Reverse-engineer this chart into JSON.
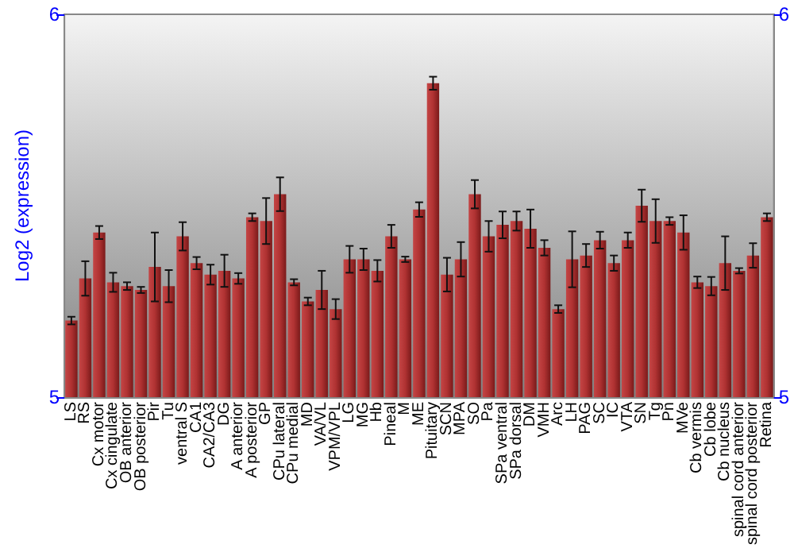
{
  "chart_data": {
    "type": "bar",
    "ylabel": "Log2 (expression)",
    "categories": [
      "LS",
      "RS",
      "Cx motor",
      "Cx cingulate",
      "OB anterior",
      "OB posterior",
      "Pir",
      "Tu",
      "ventral S",
      "CA1",
      "CA2/CA3",
      "DG",
      "A anterior",
      "A posterior",
      "GP",
      "CPu lateral",
      "CPu medial",
      "MD",
      "VA/VL",
      "VPM/VPL",
      "LG",
      "MG",
      "Hb",
      "Pineal",
      "M",
      "ME",
      "Pituitary",
      "SCN",
      "MPA",
      "SO",
      "Pa",
      "SPa ventral",
      "SPa dorsal",
      "DM",
      "VMH",
      "Arc",
      "LH",
      "PAG",
      "SC",
      "IC",
      "VTA",
      "SN",
      "Tg",
      "Pn",
      "MVe",
      "Cb vermis",
      "Cb lobe",
      "Cb nucleus",
      "spinal cord anterior",
      "spinal cord posterior",
      "Retina"
    ],
    "values": [
      5.2,
      5.31,
      5.43,
      5.3,
      5.29,
      5.28,
      5.34,
      5.29,
      5.42,
      5.35,
      5.32,
      5.33,
      5.31,
      5.47,
      5.46,
      5.53,
      5.3,
      5.25,
      5.28,
      5.23,
      5.36,
      5.36,
      5.33,
      5.42,
      5.36,
      5.49,
      5.82,
      5.32,
      5.36,
      5.53,
      5.42,
      5.45,
      5.46,
      5.44,
      5.39,
      5.23,
      5.36,
      5.37,
      5.41,
      5.35,
      5.41,
      5.5,
      5.46,
      5.46,
      5.43,
      5.3,
      5.29,
      5.35,
      5.33,
      5.37,
      5.47
    ],
    "errors": [
      0.01,
      0.045,
      0.017,
      0.025,
      0.01,
      0.008,
      0.09,
      0.042,
      0.037,
      0.016,
      0.026,
      0.042,
      0.014,
      0.01,
      0.06,
      0.044,
      0.008,
      0.01,
      0.05,
      0.026,
      0.035,
      0.028,
      0.028,
      0.03,
      0.007,
      0.019,
      0.017,
      0.044,
      0.045,
      0.037,
      0.04,
      0.035,
      0.025,
      0.05,
      0.02,
      0.01,
      0.073,
      0.03,
      0.022,
      0.02,
      0.02,
      0.042,
      0.057,
      0.01,
      0.045,
      0.015,
      0.024,
      0.07,
      0.007,
      0.032,
      0.01
    ],
    "color": "#b03232",
    "ylim": [
      5,
      6
    ],
    "yticks": [
      5,
      6
    ],
    "y2lim": [
      5,
      6
    ],
    "y2ticks": [
      5,
      6
    ],
    "grid": false
  }
}
